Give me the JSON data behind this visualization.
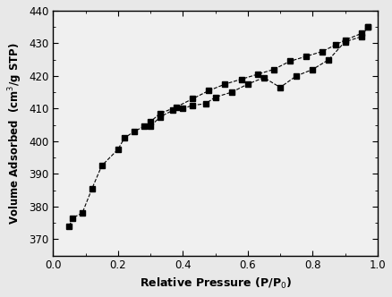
{
  "adsorption_x": [
    0.05,
    0.06,
    0.09,
    0.12,
    0.15,
    0.2,
    0.22,
    0.25,
    0.28,
    0.3,
    0.33,
    0.37,
    0.4,
    0.43,
    0.47,
    0.5,
    0.55,
    0.6,
    0.65,
    0.7,
    0.75,
    0.8,
    0.85,
    0.9,
    0.95,
    0.97
  ],
  "adsorption_y": [
    374.0,
    376.5,
    378.0,
    385.5,
    392.5,
    397.5,
    401.0,
    403.0,
    404.5,
    404.5,
    407.5,
    409.5,
    410.0,
    411.0,
    411.5,
    413.5,
    415.0,
    417.5,
    419.5,
    416.5,
    420.0,
    422.0,
    425.0,
    430.5,
    432.0,
    435.0
  ],
  "desorption_x": [
    0.97,
    0.95,
    0.9,
    0.87,
    0.83,
    0.78,
    0.73,
    0.68,
    0.63,
    0.58,
    0.53,
    0.48,
    0.43,
    0.38,
    0.33,
    0.3
  ],
  "desorption_y": [
    435.0,
    433.0,
    431.0,
    429.5,
    427.5,
    426.0,
    424.5,
    422.0,
    420.5,
    419.0,
    417.5,
    415.5,
    413.0,
    410.5,
    408.5,
    406.0
  ],
  "xlabel": "Relative Pressure (P/P$_0$)",
  "ylabel": "Volume Adsorbed  (cm$^3$/g STP)",
  "xlim": [
    0.0,
    1.0
  ],
  "ylim": [
    365,
    440
  ],
  "xticks": [
    0.0,
    0.2,
    0.4,
    0.6,
    0.8,
    1.0
  ],
  "yticks": [
    370,
    380,
    390,
    400,
    410,
    420,
    430,
    440
  ],
  "line_color": "#000000",
  "marker": "s",
  "marker_size": 4,
  "background_color": "#f0f0f0",
  "line_style": "--",
  "line_width": 0.8
}
